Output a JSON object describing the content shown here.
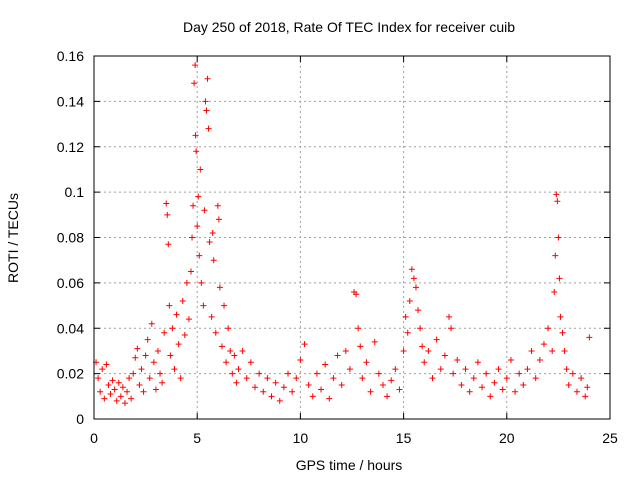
{
  "chart_data": {
    "type": "scatter",
    "title": "Day 250 of 2018, Rate Of TEC Index for receiver cuib",
    "xlabel": "GPS time / hours",
    "ylabel": "ROTI / TECUs",
    "xlim": [
      0,
      25
    ],
    "ylim": [
      0,
      0.16
    ],
    "x_ticks": [
      0,
      5,
      10,
      15,
      20,
      25
    ],
    "x_tick_labels": [
      "0",
      "5",
      "10",
      "15",
      "20",
      "25"
    ],
    "y_ticks": [
      0,
      0.02,
      0.04,
      0.06,
      0.08,
      0.1,
      0.12,
      0.14,
      0.16
    ],
    "y_tick_labels": [
      "0",
      "0.02",
      "0.04",
      "0.06",
      "0.08",
      "0.1",
      "0.12",
      "0.14",
      "0.16"
    ],
    "grid": true,
    "marker": "+",
    "color": "#ff0000",
    "series": [
      {
        "name": "ROTI",
        "points": [
          [
            0.1,
            0.025
          ],
          [
            0.2,
            0.018
          ],
          [
            0.3,
            0.012
          ],
          [
            0.4,
            0.022
          ],
          [
            0.5,
            0.009
          ],
          [
            0.6,
            0.024
          ],
          [
            0.7,
            0.015
          ],
          [
            0.8,
            0.011
          ],
          [
            0.9,
            0.017
          ],
          [
            1.0,
            0.013
          ],
          [
            1.1,
            0.008
          ],
          [
            1.2,
            0.016
          ],
          [
            1.3,
            0.01
          ],
          [
            1.4,
            0.014
          ],
          [
            1.5,
            0.007
          ],
          [
            1.6,
            0.012
          ],
          [
            1.7,
            0.018
          ],
          [
            1.8,
            0.009
          ],
          [
            1.9,
            0.02
          ],
          [
            2.0,
            0.027
          ],
          [
            2.1,
            0.031
          ],
          [
            2.2,
            0.015
          ],
          [
            2.3,
            0.022
          ],
          [
            2.4,
            0.012
          ],
          [
            2.5,
            0.028
          ],
          [
            2.6,
            0.035
          ],
          [
            2.7,
            0.018
          ],
          [
            2.8,
            0.042
          ],
          [
            2.9,
            0.025
          ],
          [
            3.0,
            0.013
          ],
          [
            3.1,
            0.03
          ],
          [
            3.2,
            0.02
          ],
          [
            3.3,
            0.016
          ],
          [
            3.4,
            0.038
          ],
          [
            3.5,
            0.095
          ],
          [
            3.55,
            0.09
          ],
          [
            3.6,
            0.077
          ],
          [
            3.65,
            0.05
          ],
          [
            3.7,
            0.028
          ],
          [
            3.8,
            0.04
          ],
          [
            3.9,
            0.022
          ],
          [
            4.0,
            0.046
          ],
          [
            4.1,
            0.033
          ],
          [
            4.2,
            0.018
          ],
          [
            4.3,
            0.052
          ],
          [
            4.4,
            0.037
          ],
          [
            4.5,
            0.06
          ],
          [
            4.6,
            0.044
          ],
          [
            4.7,
            0.065
          ],
          [
            4.75,
            0.08
          ],
          [
            4.8,
            0.094
          ],
          [
            4.85,
            0.148
          ],
          [
            4.9,
            0.156
          ],
          [
            4.92,
            0.125
          ],
          [
            4.95,
            0.118
          ],
          [
            5.0,
            0.085
          ],
          [
            5.05,
            0.098
          ],
          [
            5.1,
            0.072
          ],
          [
            5.15,
            0.11
          ],
          [
            5.2,
            0.06
          ],
          [
            5.3,
            0.05
          ],
          [
            5.35,
            0.092
          ],
          [
            5.4,
            0.14
          ],
          [
            5.45,
            0.136
          ],
          [
            5.5,
            0.15
          ],
          [
            5.55,
            0.128
          ],
          [
            5.6,
            0.078
          ],
          [
            5.7,
            0.045
          ],
          [
            5.75,
            0.082
          ],
          [
            5.8,
            0.07
          ],
          [
            5.9,
            0.038
          ],
          [
            6.0,
            0.094
          ],
          [
            6.05,
            0.088
          ],
          [
            6.1,
            0.058
          ],
          [
            6.2,
            0.032
          ],
          [
            6.3,
            0.05
          ],
          [
            6.4,
            0.025
          ],
          [
            6.5,
            0.04
          ],
          [
            6.6,
            0.03
          ],
          [
            6.7,
            0.02
          ],
          [
            6.8,
            0.028
          ],
          [
            6.9,
            0.016
          ],
          [
            7.0,
            0.022
          ],
          [
            7.2,
            0.03
          ],
          [
            7.4,
            0.018
          ],
          [
            7.6,
            0.025
          ],
          [
            7.8,
            0.014
          ],
          [
            8.0,
            0.02
          ],
          [
            8.2,
            0.012
          ],
          [
            8.4,
            0.018
          ],
          [
            8.6,
            0.01
          ],
          [
            8.8,
            0.016
          ],
          [
            9.0,
            0.008
          ],
          [
            9.2,
            0.014
          ],
          [
            9.4,
            0.02
          ],
          [
            9.6,
            0.012
          ],
          [
            9.8,
            0.018
          ],
          [
            10.0,
            0.026
          ],
          [
            10.2,
            0.033
          ],
          [
            10.4,
            0.015
          ],
          [
            10.6,
            0.01
          ],
          [
            10.8,
            0.02
          ],
          [
            11.0,
            0.013
          ],
          [
            11.2,
            0.024
          ],
          [
            11.4,
            0.009
          ],
          [
            11.6,
            0.018
          ],
          [
            11.8,
            0.028
          ],
          [
            12.0,
            0.015
          ],
          [
            12.2,
            0.03
          ],
          [
            12.4,
            0.022
          ],
          [
            12.6,
            0.056
          ],
          [
            12.7,
            0.055
          ],
          [
            12.8,
            0.04
          ],
          [
            12.9,
            0.032
          ],
          [
            13.0,
            0.018
          ],
          [
            13.2,
            0.025
          ],
          [
            13.4,
            0.012
          ],
          [
            13.6,
            0.034
          ],
          [
            13.8,
            0.02
          ],
          [
            14.0,
            0.015
          ],
          [
            14.2,
            0.01
          ],
          [
            14.4,
            0.017
          ],
          [
            14.6,
            0.022
          ],
          [
            14.8,
            0.013
          ],
          [
            15.0,
            0.03
          ],
          [
            15.1,
            0.045
          ],
          [
            15.2,
            0.038
          ],
          [
            15.3,
            0.052
          ],
          [
            15.4,
            0.066
          ],
          [
            15.5,
            0.062
          ],
          [
            15.6,
            0.058
          ],
          [
            15.7,
            0.048
          ],
          [
            15.8,
            0.04
          ],
          [
            15.9,
            0.032
          ],
          [
            16.0,
            0.025
          ],
          [
            16.2,
            0.03
          ],
          [
            16.4,
            0.018
          ],
          [
            16.6,
            0.035
          ],
          [
            16.8,
            0.022
          ],
          [
            17.0,
            0.028
          ],
          [
            17.2,
            0.045
          ],
          [
            17.3,
            0.04
          ],
          [
            17.4,
            0.02
          ],
          [
            17.6,
            0.026
          ],
          [
            17.8,
            0.015
          ],
          [
            18.0,
            0.022
          ],
          [
            18.2,
            0.012
          ],
          [
            18.4,
            0.018
          ],
          [
            18.6,
            0.025
          ],
          [
            18.8,
            0.014
          ],
          [
            19.0,
            0.02
          ],
          [
            19.2,
            0.01
          ],
          [
            19.4,
            0.016
          ],
          [
            19.6,
            0.022
          ],
          [
            19.8,
            0.013
          ],
          [
            20.0,
            0.018
          ],
          [
            20.2,
            0.026
          ],
          [
            20.4,
            0.012
          ],
          [
            20.6,
            0.02
          ],
          [
            20.8,
            0.015
          ],
          [
            21.0,
            0.022
          ],
          [
            21.2,
            0.03
          ],
          [
            21.4,
            0.018
          ],
          [
            21.6,
            0.026
          ],
          [
            21.8,
            0.033
          ],
          [
            22.0,
            0.04
          ],
          [
            22.2,
            0.03
          ],
          [
            22.3,
            0.056
          ],
          [
            22.35,
            0.072
          ],
          [
            22.4,
            0.099
          ],
          [
            22.45,
            0.096
          ],
          [
            22.5,
            0.08
          ],
          [
            22.55,
            0.062
          ],
          [
            22.6,
            0.045
          ],
          [
            22.7,
            0.038
          ],
          [
            22.8,
            0.03
          ],
          [
            22.9,
            0.022
          ],
          [
            23.0,
            0.015
          ],
          [
            23.2,
            0.02
          ],
          [
            23.4,
            0.012
          ],
          [
            23.6,
            0.018
          ],
          [
            23.8,
            0.01
          ],
          [
            23.9,
            0.014
          ],
          [
            24.0,
            0.036
          ]
        ]
      }
    ]
  }
}
